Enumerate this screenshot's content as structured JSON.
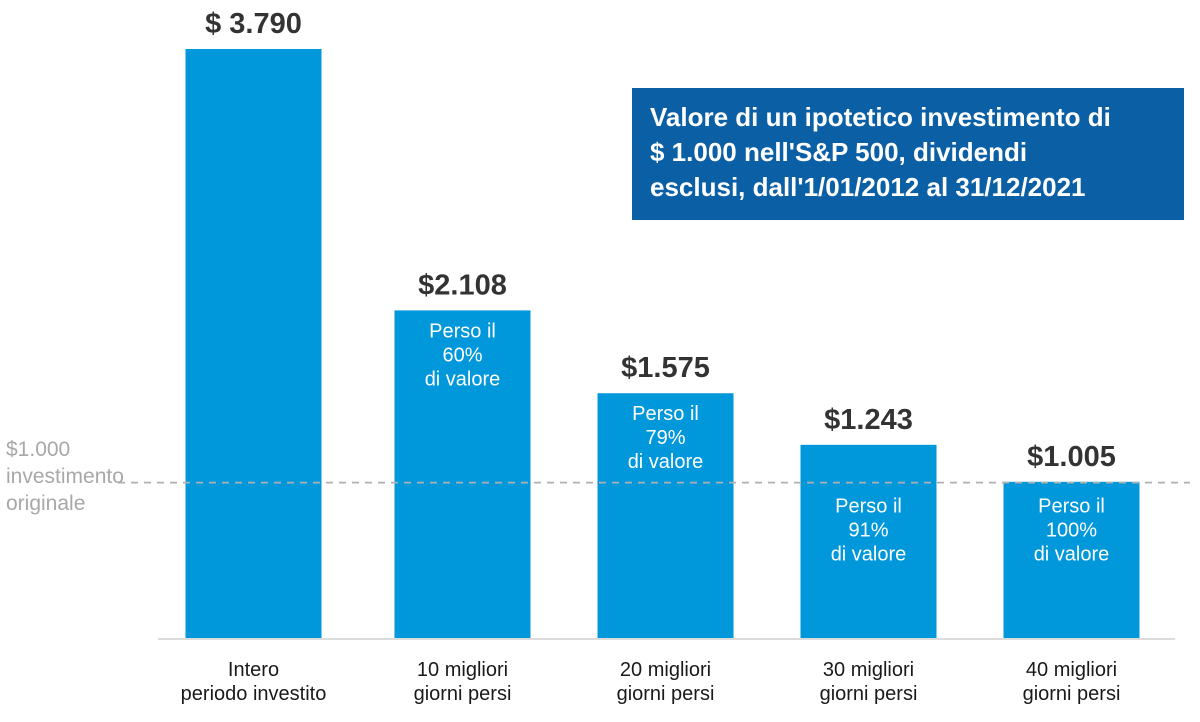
{
  "colors": {
    "bar": "#0097db",
    "title_box": "#0b5fa5",
    "value_text": "#333333",
    "ref_line": "#b0b0b0",
    "axis": "#d0d0d0"
  },
  "chart_data": {
    "type": "bar",
    "title_lines": [
      "Valore di un ipotetico investimento di",
      "$ 1.000 nell'S&P 500, dividendi",
      "esclusi, dall'1/01/2012 al 31/12/2021"
    ],
    "categories": [
      [
        "Intero",
        "periodo investito"
      ],
      [
        "10 migliori",
        "giorni persi"
      ],
      [
        "20 migliori",
        "giorni persi"
      ],
      [
        "30 migliori",
        "giorni persi"
      ],
      [
        "40 migliori",
        "giorni persi"
      ]
    ],
    "values": [
      3790,
      2108,
      1575,
      1243,
      1005
    ],
    "value_labels": [
      "$ 3.790",
      "$2.108",
      "$1.575",
      "$1.243",
      "$1.005"
    ],
    "notes": [
      [],
      [
        "Perso il",
        "60%",
        "di valore"
      ],
      [
        "Perso il",
        "79%",
        "di valore"
      ],
      [
        "Perso il",
        "91%",
        "di valore"
      ],
      [
        "Perso il",
        "100%",
        "di valore"
      ]
    ],
    "reference_line": {
      "value": 1000,
      "label_lines": [
        "$1.000",
        "investimento",
        "originale"
      ]
    },
    "ylim": [
      0,
      3790
    ],
    "grid": false
  }
}
